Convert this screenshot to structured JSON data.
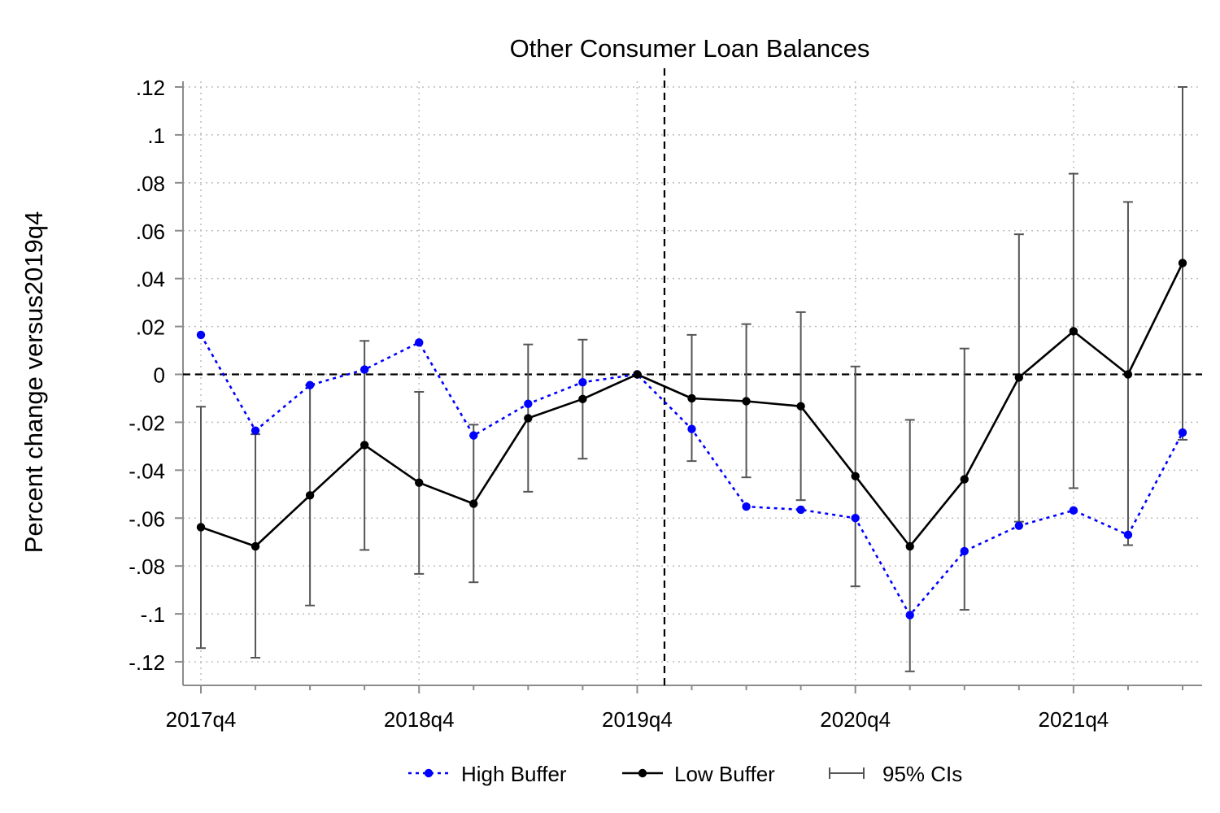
{
  "chart_data": {
    "type": "line",
    "title": "Other Consumer Loan Balances",
    "xlabel": "",
    "ylabel": "Percent change versus2019q4",
    "x": [
      "2017q4",
      "2018q1",
      "2018q2",
      "2018q3",
      "2018q4",
      "2019q1",
      "2019q2",
      "2019q3",
      "2019q4",
      "2020q1",
      "2020q2",
      "2020q3",
      "2020q4",
      "2021q1",
      "2021q2",
      "2021q3",
      "2021q4",
      "2022q1",
      "2022q2"
    ],
    "x_tick_labels": [
      "2017q4",
      "2018q4",
      "2019q4",
      "2020q4",
      "2021q4"
    ],
    "y_ticks": [
      0.12,
      0.1,
      0.08,
      0.06,
      0.04,
      0.02,
      0,
      -0.02,
      -0.04,
      -0.06,
      -0.08,
      -0.1,
      -0.12
    ],
    "y_tick_labels": [
      ".12",
      ".1",
      ".08",
      ".06",
      ".04",
      ".02",
      "0",
      "-.02",
      "-.04",
      "-.06",
      "-.08",
      "-.1",
      "-.12"
    ],
    "ylim": [
      -0.13,
      0.12
    ],
    "grid": true,
    "legend_position": "bottom",
    "reference_lines": {
      "vertical_at": "2020q1 (between 2019q4 and 2020q1)",
      "horizontal_at": 0
    },
    "series": [
      {
        "name": "High Buffer",
        "color": "#0000ff",
        "style": "dotted",
        "values": [
          0.0165,
          -0.0235,
          -0.0045,
          0.002,
          0.0133,
          -0.0255,
          -0.0123,
          -0.0033,
          0.0,
          -0.0228,
          -0.0552,
          -0.0565,
          -0.06,
          -0.1005,
          -0.0738,
          -0.0632,
          -0.0568,
          -0.067,
          -0.0243
        ]
      },
      {
        "name": "Low Buffer",
        "color": "#000000",
        "style": "solid",
        "values": [
          -0.0638,
          -0.0718,
          -0.0505,
          -0.0295,
          -0.0452,
          -0.054,
          -0.0183,
          -0.0103,
          0.0,
          -0.01,
          -0.0112,
          -0.0133,
          -0.0425,
          -0.0718,
          -0.0438,
          -0.0013,
          0.018,
          0.0,
          0.0465
        ],
        "ci_lower": [
          -0.1143,
          -0.1183,
          -0.0965,
          -0.0733,
          -0.0833,
          -0.0868,
          -0.049,
          -0.0352,
          0.0,
          -0.0362,
          -0.043,
          -0.0525,
          -0.0885,
          -0.124,
          -0.0983,
          -0.0615,
          -0.0475,
          -0.0713,
          -0.0273
        ],
        "ci_upper": [
          -0.0135,
          -0.025,
          -0.0045,
          0.014,
          -0.0073,
          -0.021,
          0.0125,
          0.0145,
          0.0,
          0.0165,
          0.021,
          0.026,
          0.0033,
          -0.019,
          0.0108,
          0.0585,
          0.0838,
          0.072,
          0.12
        ]
      }
    ],
    "legend": [
      {
        "label": "High Buffer",
        "color": "#0000ff",
        "icon": "dotted-line-dot-icon"
      },
      {
        "label": "Low Buffer",
        "color": "#000000",
        "icon": "solid-line-dot-icon"
      },
      {
        "label": "95% CIs",
        "color": "#555555",
        "icon": "error-bar-icon"
      }
    ]
  }
}
